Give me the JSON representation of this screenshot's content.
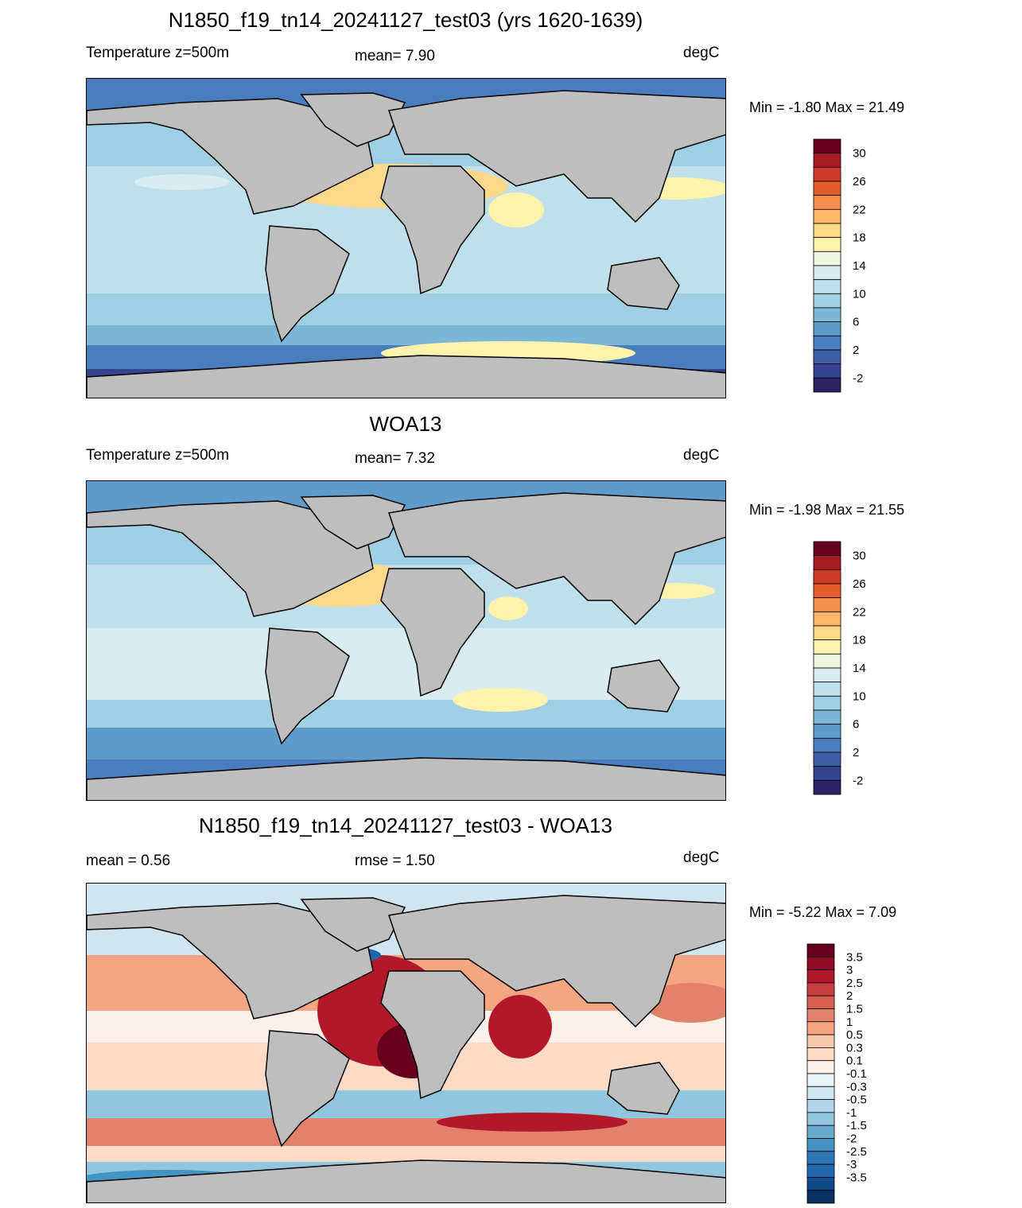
{
  "panels": [
    {
      "title": "N1850_f19_tn14_20241127_test03 (yrs 1620-1639)",
      "left_label": "Temperature z=500m",
      "center_label": "mean=   7.90",
      "units": "degC",
      "minmax": "Min =  -1.80 Max =  21.49",
      "colorbar": {
        "labels": [
          "30",
          "26",
          "22",
          "18",
          "14",
          "10",
          "6",
          "2",
          "-2"
        ],
        "colors": [
          "#67001f",
          "#a61c22",
          "#cc3b28",
          "#e45c2e",
          "#f58e4e",
          "#fcb669",
          "#fdd88a",
          "#fef2ad",
          "#eef6e2",
          "#d9ecef",
          "#bfe0ea",
          "#9fcfe3",
          "#7db7d8",
          "#5e9bcb",
          "#4a7dbd",
          "#3d5fa6",
          "#35448e",
          "#2c2266"
        ]
      }
    },
    {
      "title": "WOA13",
      "left_label": "Temperature z=500m",
      "center_label": "mean=   7.32",
      "units": "degC",
      "minmax": "Min =  -1.98 Max =  21.55",
      "colorbar": {
        "labels": [
          "30",
          "26",
          "22",
          "18",
          "14",
          "10",
          "6",
          "2",
          "-2"
        ],
        "colors": [
          "#67001f",
          "#a61c22",
          "#cc3b28",
          "#e45c2e",
          "#f58e4e",
          "#fcb669",
          "#fdd88a",
          "#fef2ad",
          "#eef6e2",
          "#d9ecef",
          "#bfe0ea",
          "#9fcfe3",
          "#7db7d8",
          "#5e9bcb",
          "#4a7dbd",
          "#3d5fa6",
          "#35448e",
          "#2c2266"
        ]
      }
    },
    {
      "title": "N1850_f19_tn14_20241127_test03 - WOA13",
      "left_label": "mean =   0.56",
      "center_label": "rmse =   1.50",
      "units": "degC",
      "minmax": "Min =  -5.22 Max =   7.09",
      "colorbar": {
        "labels": [
          "3.5",
          "3",
          "2.5",
          "2",
          "1.5",
          "1",
          "0.5",
          "0.3",
          "0.1",
          "-0.1",
          "-0.3",
          "-0.5",
          "-1",
          "-1.5",
          "-2",
          "-2.5",
          "-3",
          "-3.5"
        ],
        "colors": [
          "#67001f",
          "#8e0c25",
          "#b2182b",
          "#c6403f",
          "#d6604d",
          "#e3826a",
          "#f4a582",
          "#f8c6ad",
          "#fddbc7",
          "#fbf1ea",
          "#e8f1f6",
          "#d1e5f0",
          "#b2d5e8",
          "#92c5de",
          "#6aa9cf",
          "#4393c3",
          "#2e77b4",
          "#2166ac",
          "#114a85",
          "#053061"
        ]
      }
    }
  ],
  "map_colors": {
    "land": "#bebebe",
    "coast": "#000000"
  }
}
